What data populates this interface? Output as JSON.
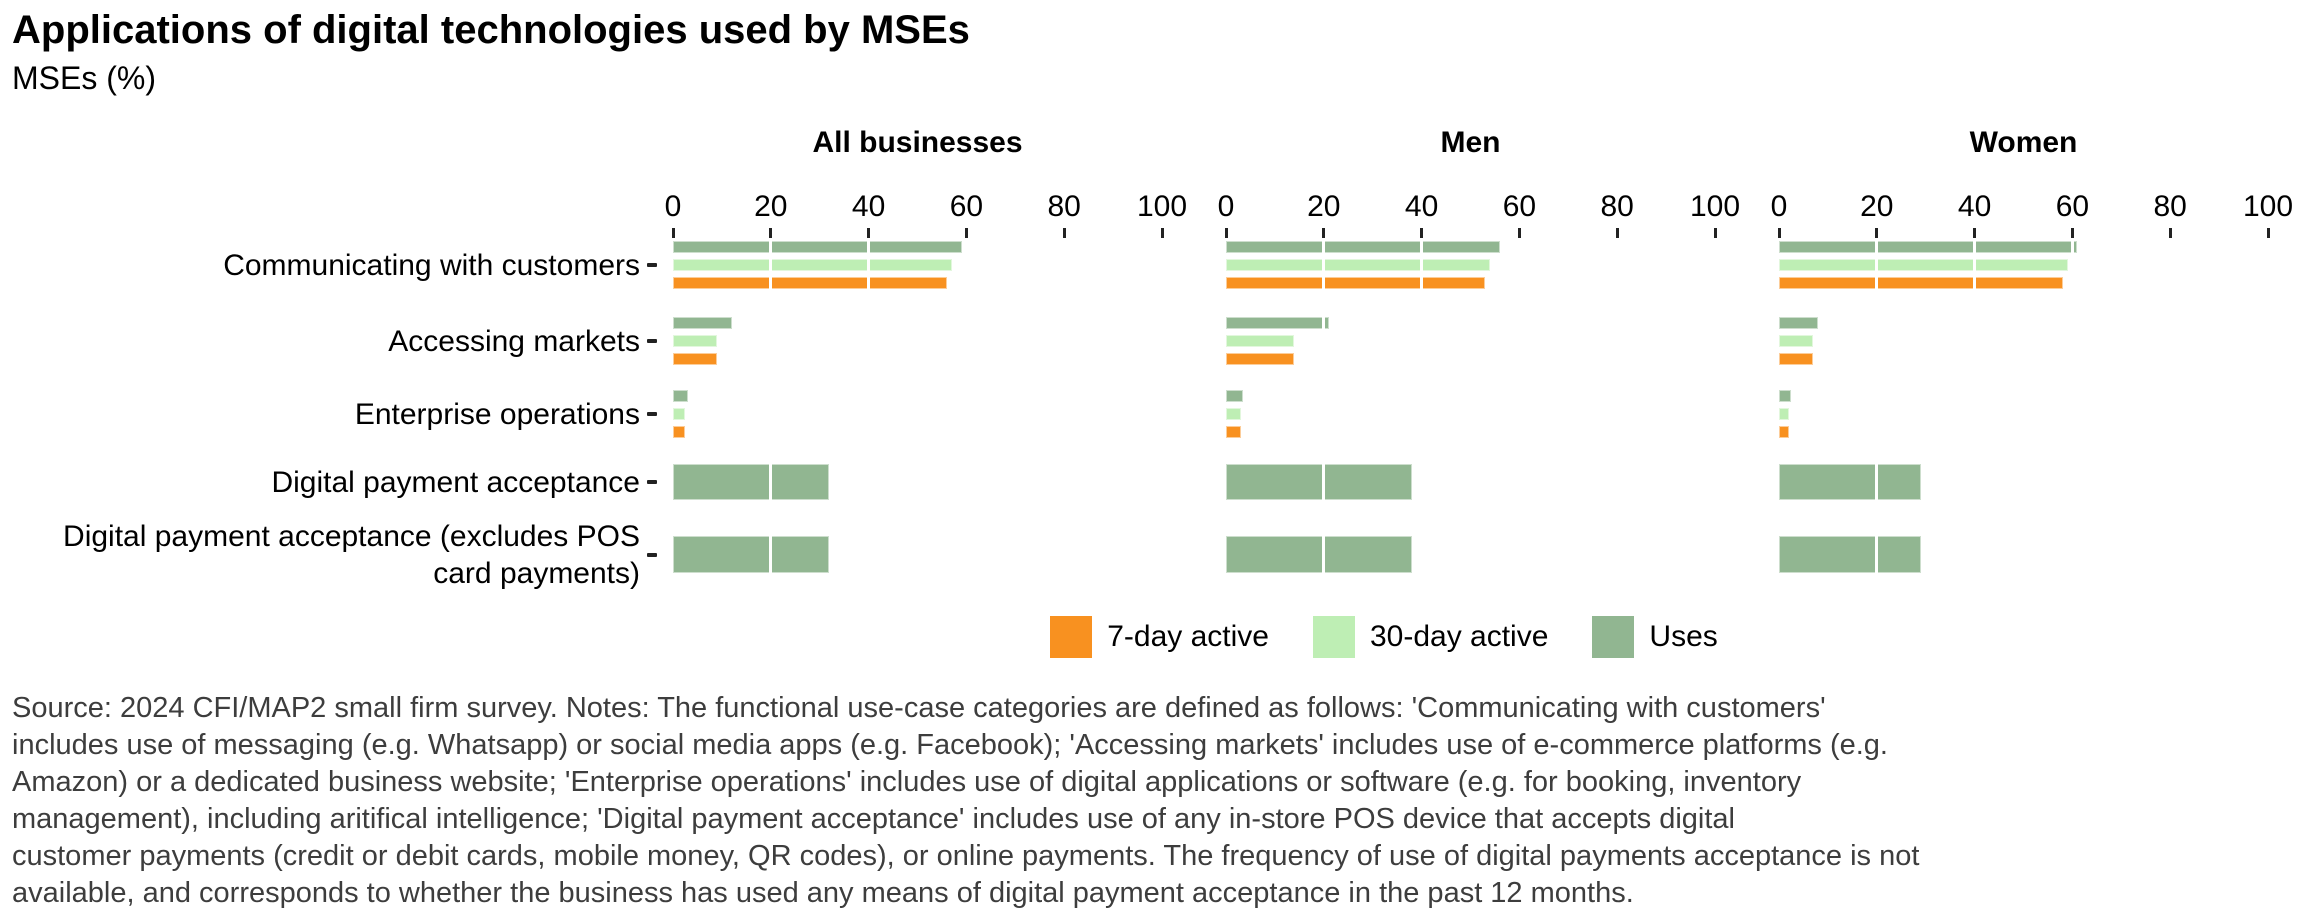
{
  "title": "Applications of digital technologies used by MSEs",
  "subtitle": "MSEs (%)",
  "axis": {
    "ticks": [
      0,
      20,
      40,
      60,
      80,
      100
    ],
    "range": [
      0,
      100
    ]
  },
  "categories": [
    "Communicating with customers",
    "Accessing markets",
    "Enterprise operations",
    "Digital payment acceptance",
    "Digital payment acceptance (excludes POS card payments)"
  ],
  "legend": [
    {
      "label": "7-day active",
      "color": "#F89120"
    },
    {
      "label": "30-day active",
      "color": "#BEEEB4"
    },
    {
      "label": "Uses",
      "color": "#91B691"
    }
  ],
  "chart_data": {
    "type": "bar",
    "orientation": "horizontal",
    "title": "Applications of digital technologies used by MSEs",
    "ylabel": "MSEs (%)",
    "xlim": [
      0,
      100
    ],
    "grid": "white-overlay",
    "legend_position": "bottom",
    "facets": [
      {
        "name": "All businesses",
        "series": [
          {
            "name": "7-day active",
            "values": [
              56,
              9,
              2.5,
              null,
              null
            ]
          },
          {
            "name": "30-day active",
            "values": [
              57,
              9,
              2.5,
              null,
              null
            ]
          },
          {
            "name": "Uses",
            "values": [
              59,
              12,
              3,
              32,
              32
            ]
          }
        ]
      },
      {
        "name": "Men",
        "series": [
          {
            "name": "7-day active",
            "values": [
              53,
              14,
              3,
              null,
              null
            ]
          },
          {
            "name": "30-day active",
            "values": [
              54,
              14,
              3,
              null,
              null
            ]
          },
          {
            "name": "Uses",
            "values": [
              56,
              21,
              3.5,
              38,
              38
            ]
          }
        ]
      },
      {
        "name": "Women",
        "series": [
          {
            "name": "7-day active",
            "values": [
              58,
              7,
              2,
              null,
              null
            ]
          },
          {
            "name": "30-day active",
            "values": [
              59,
              7,
              2,
              null,
              null
            ]
          },
          {
            "name": "Uses",
            "values": [
              61,
              8,
              2.5,
              29,
              29
            ]
          }
        ]
      }
    ]
  },
  "footnote_lines": [
    "Source: 2024 CFI/MAP2 small firm survey. Notes: The functional use-case categories are defined as follows: 'Communicating with customers'",
    "includes use of messaging (e.g. Whatsapp) or social media apps (e.g. Facebook); 'Accessing markets' includes use of e-commerce platforms (e.g.",
    "Amazon) or a dedicated business website; 'Enterprise operations' includes use of digital applications or software (e.g. for booking, inventory",
    "management), including aritifical intelligence; 'Digital payment acceptance' includes use of any in-store POS device that accepts digital",
    "customer payments (credit or debit cards, mobile money, QR codes), or online payments. The frequency of use of digital payments acceptance is not",
    "available, and corresponds to whether the business has used any means of digital payment acceptance in the past 12 months."
  ]
}
